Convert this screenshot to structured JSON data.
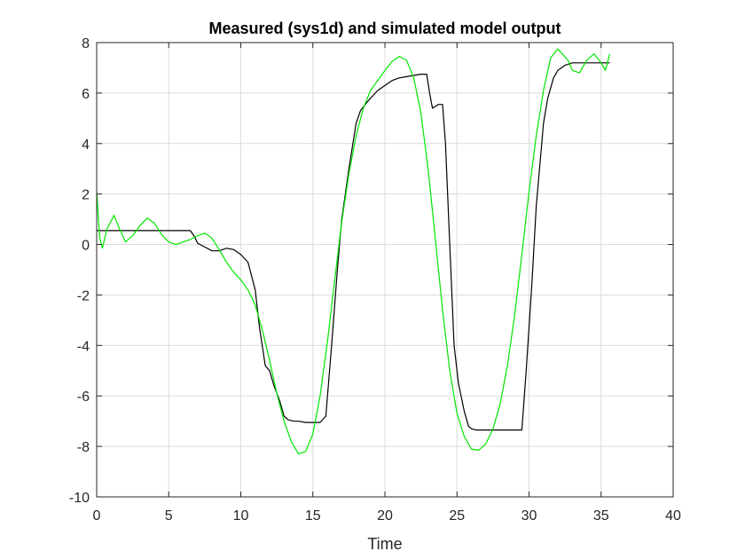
{
  "chart_data": {
    "type": "line",
    "title": "Measured (sys1d) and simulated model output",
    "xlabel": "Time",
    "ylabel": "",
    "xlim": [
      0,
      40
    ],
    "ylim": [
      -10,
      8
    ],
    "xticks": [
      "0",
      "5",
      "10",
      "15",
      "20",
      "25",
      "30",
      "35",
      "40"
    ],
    "yticks": [
      "8",
      "6",
      "4",
      "2",
      "0",
      "-2",
      "-4",
      "-6",
      "-8",
      "-10"
    ],
    "grid": true,
    "legend": "none",
    "series": [
      {
        "color": "#000000",
        "x": [
          0,
          0.5,
          1,
          2,
          3,
          4,
          5,
          6,
          6.5,
          6.8,
          7,
          7.5,
          8,
          8.5,
          9,
          9.5,
          10,
          10.5,
          11,
          11.3,
          11.7,
          12,
          12.3,
          12.7,
          13,
          13.3,
          13.7,
          14,
          14.5,
          15,
          15.5,
          15.9,
          16.3,
          16.7,
          17,
          17.5,
          18,
          18.3,
          18.7,
          19,
          19.5,
          20,
          20.5,
          21,
          21.5,
          22,
          22.5,
          22.9,
          23.1,
          23.3,
          23.7,
          24,
          24.2,
          24.5,
          24.8,
          25.1,
          25.5,
          25.8,
          26,
          26.3,
          27,
          28,
          29,
          29.5,
          29.8,
          30.2,
          30.5,
          31,
          31.3,
          31.7,
          32,
          32.5,
          33,
          34,
          35,
          35.6
        ],
        "y": [
          0.55,
          0.55,
          0.55,
          0.55,
          0.55,
          0.55,
          0.55,
          0.55,
          0.55,
          0.3,
          0.05,
          -0.1,
          -0.25,
          -0.25,
          -0.15,
          -0.2,
          -0.4,
          -0.7,
          -1.8,
          -3.3,
          -4.8,
          -5.0,
          -5.6,
          -6.2,
          -6.8,
          -6.95,
          -7.0,
          -7.0,
          -7.05,
          -7.05,
          -7.05,
          -6.8,
          -4.0,
          -1.0,
          1.0,
          3.0,
          4.8,
          5.3,
          5.6,
          5.8,
          6.1,
          6.3,
          6.5,
          6.6,
          6.65,
          6.7,
          6.75,
          6.75,
          6.0,
          5.4,
          5.55,
          5.55,
          4.0,
          0.0,
          -4.0,
          -5.5,
          -6.6,
          -7.2,
          -7.3,
          -7.35,
          -7.35,
          -7.35,
          -7.35,
          -7.35,
          -5.0,
          -1.5,
          1.5,
          4.8,
          5.8,
          6.6,
          6.9,
          7.1,
          7.2,
          7.2,
          7.2,
          7.2
        ]
      },
      {
        "color": "#00e600",
        "x": [
          0,
          0.2,
          0.4,
          0.7,
          1.2,
          1.6,
          2.0,
          2.5,
          3.0,
          3.5,
          4.0,
          4.5,
          5.0,
          5.5,
          6.0,
          6.5,
          7.0,
          7.5,
          8.0,
          8.5,
          9.0,
          9.5,
          10.0,
          10.5,
          11.0,
          11.5,
          12.0,
          12.5,
          13.0,
          13.5,
          14.0,
          14.5,
          15.0,
          15.5,
          16.0,
          16.5,
          17.0,
          17.5,
          18.0,
          18.5,
          19.0,
          19.5,
          20.0,
          20.5,
          21.0,
          21.5,
          22.0,
          22.5,
          23.0,
          23.5,
          24.0,
          24.5,
          25.0,
          25.5,
          26.0,
          26.5,
          27.0,
          27.5,
          28.0,
          28.5,
          29.0,
          29.5,
          30.0,
          30.5,
          31.0,
          31.5,
          32.0,
          32.7,
          33.0,
          33.5,
          34.0,
          34.5,
          35.0,
          35.3,
          35.6
        ],
        "y": [
          2.1,
          0.3,
          -0.15,
          0.6,
          1.15,
          0.6,
          0.1,
          0.35,
          0.75,
          1.05,
          0.85,
          0.4,
          0.1,
          0.0,
          0.1,
          0.2,
          0.35,
          0.45,
          0.25,
          -0.2,
          -0.7,
          -1.1,
          -1.4,
          -1.8,
          -2.4,
          -3.4,
          -4.6,
          -5.9,
          -7.0,
          -7.8,
          -8.3,
          -8.2,
          -7.5,
          -6.0,
          -3.9,
          -1.5,
          0.9,
          2.8,
          4.3,
          5.4,
          6.1,
          6.5,
          6.9,
          7.25,
          7.45,
          7.3,
          6.6,
          5.2,
          3.0,
          0.2,
          -2.6,
          -5.0,
          -6.7,
          -7.6,
          -8.1,
          -8.15,
          -7.9,
          -7.3,
          -6.3,
          -4.8,
          -2.8,
          -0.4,
          2.1,
          4.3,
          6.1,
          7.4,
          7.75,
          7.3,
          6.9,
          6.8,
          7.3,
          7.55,
          7.2,
          6.9,
          7.55
        ]
      }
    ]
  }
}
